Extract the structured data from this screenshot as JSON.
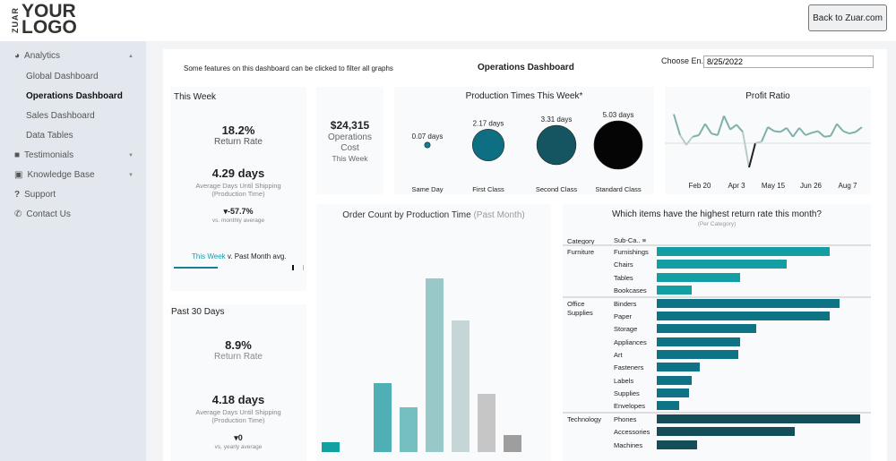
{
  "header": {
    "logo_side": "ZUAR",
    "logo_line1": "YOUR",
    "logo_line2": "LOGO",
    "back_button": "Back to Zuar.com"
  },
  "sidebar": {
    "items": [
      {
        "label": "Analytics",
        "icon": "pie-chart-icon",
        "expanded": true
      },
      {
        "label": "Global Dashboard"
      },
      {
        "label": "Operations Dashboard",
        "active": true
      },
      {
        "label": "Sales Dashboard"
      },
      {
        "label": "Data Tables"
      },
      {
        "label": "Testimonials",
        "icon": "video-icon"
      },
      {
        "label": "Knowledge Base",
        "icon": "book-icon"
      },
      {
        "label": "Support",
        "icon": "question-icon"
      },
      {
        "label": "Contact Us",
        "icon": "phone-icon"
      }
    ]
  },
  "dashboard": {
    "note": "Some features on this dashboard can be clicked to filter all graphs",
    "title": "Operations Dashboard",
    "date_label": "Choose En...",
    "date_value": "8/25/2022"
  },
  "this_week": {
    "title": "This Week",
    "return_rate": "18.2%",
    "return_label": "Return Rate",
    "days": "4.29 days",
    "days_label1": "Average Days Until Shipping",
    "days_label2": "(Production Time)",
    "delta": "▾-57.7%",
    "delta_label": "vs. monthly average",
    "legend_a": "This Week",
    "legend_b": " v. Past Month avg.",
    "progress_fraction": 0.35,
    "accent": "#1a7f8e"
  },
  "past_30": {
    "title": "Past 30 Days",
    "return_rate": "8.9%",
    "return_label": "Return Rate",
    "days": "4.18 days",
    "days_label1": "Average Days Until Shipping",
    "days_label2": "(Production Time)",
    "delta": "▾0",
    "delta_label": "vs. yearly average"
  },
  "ops_cost": {
    "value": "$24,315",
    "label1": "Operations",
    "label2": "Cost",
    "label3": "This Week"
  },
  "chart_data": [
    {
      "type": "scatter",
      "title": "Production Times This Week*",
      "categories": [
        "Same Day",
        "First Class",
        "Second Class",
        "Standard Class"
      ],
      "values": [
        0.07,
        2.17,
        3.31,
        5.03
      ],
      "labels": [
        "0.07 days",
        "2.17 days",
        "3.31 days",
        "5.03 days"
      ],
      "colors": [
        "#13808f",
        "#0f6f82",
        "#155561",
        "#050505"
      ]
    },
    {
      "type": "line",
      "title": "Profit Ratio",
      "x_ticks": [
        "Feb 20",
        "Apr 3",
        "May 15",
        "Jun 26",
        "Aug 7"
      ],
      "values": [
        0.36,
        0.1,
        -0.02,
        0.08,
        0.1,
        0.24,
        0.12,
        0.1,
        0.34,
        0.17,
        0.23,
        0.14,
        -0.3,
        0.0,
        0.02,
        0.2,
        0.15,
        0.14,
        0.19,
        0.08,
        0.19,
        0.1,
        0.13,
        0.15,
        0.08,
        0.09,
        0.24,
        0.15,
        0.12,
        0.14,
        0.2
      ],
      "reference_line": 0
    },
    {
      "type": "bar",
      "title": "Order Count by Production Time",
      "title_suffix": "(Past Month)",
      "values": [
        11,
        0,
        77,
        50,
        194,
        147,
        65,
        19
      ],
      "colors": [
        "#13a0a3",
        "#13a0a3",
        "#4eb0b5",
        "#75bfc0",
        "#99c8c9",
        "#c5d6d6",
        "#c6c6c6",
        "#9e9e9e"
      ]
    },
    {
      "type": "bar",
      "orientation": "horizontal",
      "title": "Which items have the highest return rate this month?",
      "subtitle": "(Per Category)",
      "col_headers": [
        "Category",
        "Sub-Ca.."
      ],
      "groups": [
        {
          "category": "Furniture",
          "color": "#139ea3",
          "items": [
            [
              "Furnishings",
              0.85
            ],
            [
              "Chairs",
              0.64
            ],
            [
              "Tables",
              0.41
            ],
            [
              "Bookcases",
              0.17
            ]
          ]
        },
        {
          "category": "Office Supplies",
          "color": "#0e7485",
          "items": [
            [
              "Binders",
              0.9
            ],
            [
              "Paper",
              0.85
            ],
            [
              "Storage",
              0.49
            ],
            [
              "Appliances",
              0.41
            ],
            [
              "Art",
              0.4
            ],
            [
              "Fasteners",
              0.21
            ],
            [
              "Labels",
              0.17
            ],
            [
              "Supplies",
              0.16
            ],
            [
              "Envelopes",
              0.11
            ]
          ]
        },
        {
          "category": "Technology",
          "color": "#144e59",
          "items": [
            [
              "Phones",
              1.0
            ],
            [
              "Accessories",
              0.68
            ],
            [
              "Machines",
              0.2
            ]
          ]
        }
      ]
    }
  ]
}
